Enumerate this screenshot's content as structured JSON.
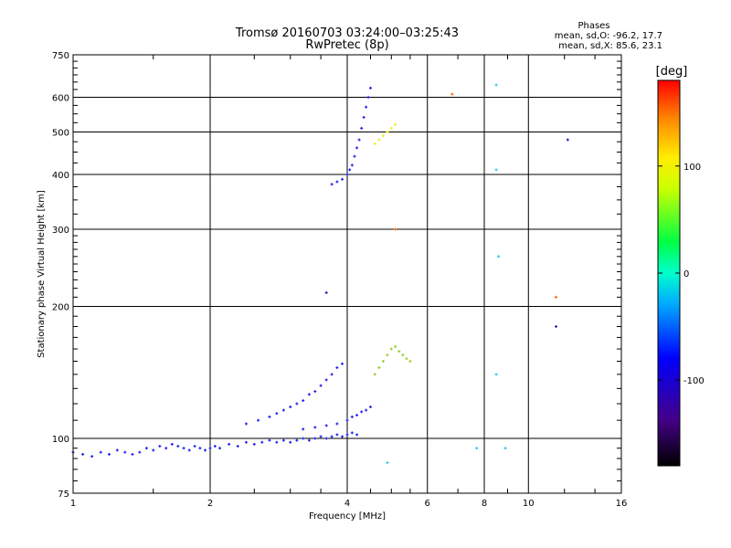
{
  "chart_data": {
    "type": "scatter",
    "title": "Tromsø 20160703 03:24:00–03:25:43",
    "subtitle": "RwPretec (8p)",
    "stats": {
      "heading": "Phases",
      "line1": "mean, sd,O: -96.2, 17.7",
      "line2": "mean, sd,X:  85.6, 23.1"
    },
    "xlabel": "Frequency [MHz]",
    "ylabel": "Stationary phase Virtual Height [km]",
    "x_scale": "log",
    "y_scale": "log",
    "xlim": [
      1,
      16
    ],
    "ylim": [
      75,
      750
    ],
    "x_ticks": [
      1,
      2,
      4,
      6,
      8,
      10,
      16
    ],
    "x_tick_labels": [
      "1",
      "2",
      "4",
      "6",
      "8",
      "10",
      "16"
    ],
    "y_ticks": [
      75,
      100,
      200,
      300,
      400,
      500,
      600,
      750
    ],
    "y_tick_labels": [
      "75",
      "100",
      "200",
      "300",
      "400",
      "500",
      "600",
      "750"
    ],
    "grid": true,
    "colorbar": {
      "label": "[deg]",
      "range": [
        -180,
        180
      ],
      "ticks": [
        100,
        0,
        -100
      ],
      "tick_labels": [
        "100",
        "0",
        "-100"
      ]
    },
    "series": [
      {
        "color": "#2222ee",
        "phase_deg": -100,
        "points": [
          [
            1.0,
            93
          ],
          [
            1.05,
            92
          ],
          [
            1.1,
            91
          ],
          [
            1.15,
            93
          ],
          [
            1.2,
            92
          ],
          [
            1.25,
            94
          ],
          [
            1.3,
            93
          ],
          [
            1.35,
            92
          ],
          [
            1.4,
            93
          ],
          [
            1.45,
            95
          ],
          [
            1.5,
            94
          ],
          [
            1.55,
            96
          ],
          [
            1.6,
            95
          ],
          [
            1.65,
            97
          ],
          [
            1.7,
            96
          ],
          [
            1.75,
            95
          ],
          [
            1.8,
            94
          ],
          [
            1.85,
            96
          ],
          [
            1.9,
            95
          ],
          [
            1.95,
            94
          ],
          [
            2.0,
            95
          ],
          [
            2.05,
            96
          ],
          [
            2.1,
            95
          ],
          [
            2.2,
            97
          ],
          [
            2.3,
            96
          ],
          [
            2.4,
            98
          ],
          [
            2.5,
            97
          ],
          [
            2.6,
            98
          ],
          [
            2.7,
            99
          ],
          [
            2.8,
            98
          ],
          [
            2.9,
            99
          ],
          [
            3.0,
            98
          ],
          [
            3.1,
            99
          ],
          [
            3.2,
            100
          ],
          [
            3.3,
            99
          ],
          [
            3.4,
            100
          ],
          [
            3.5,
            101
          ],
          [
            3.6,
            100
          ],
          [
            3.7,
            101
          ],
          [
            3.8,
            102
          ],
          [
            3.9,
            101
          ],
          [
            4.0,
            102
          ],
          [
            4.1,
            103
          ],
          [
            4.2,
            102
          ]
        ]
      },
      {
        "color": "#2222ee",
        "phase_deg": -110,
        "points": [
          [
            2.4,
            108
          ],
          [
            2.55,
            110
          ],
          [
            2.7,
            112
          ],
          [
            2.8,
            114
          ],
          [
            2.9,
            116
          ],
          [
            3.0,
            118
          ],
          [
            3.1,
            120
          ],
          [
            3.2,
            122
          ],
          [
            3.3,
            126
          ],
          [
            3.4,
            128
          ],
          [
            3.5,
            132
          ],
          [
            3.6,
            136
          ],
          [
            3.7,
            140
          ],
          [
            3.8,
            145
          ],
          [
            3.9,
            148
          ]
        ]
      },
      {
        "color": "#2222ee",
        "phase_deg": -105,
        "points": [
          [
            3.2,
            105
          ],
          [
            3.4,
            106
          ],
          [
            3.6,
            107
          ],
          [
            3.8,
            108
          ],
          [
            4.0,
            110
          ],
          [
            4.1,
            112
          ],
          [
            4.2,
            113
          ],
          [
            4.3,
            115
          ],
          [
            4.4,
            116
          ],
          [
            4.5,
            118
          ]
        ]
      },
      {
        "color": "#2222ee",
        "phase_deg": -100,
        "points": [
          [
            3.7,
            380
          ],
          [
            3.8,
            385
          ],
          [
            3.9,
            390
          ],
          [
            4.0,
            400
          ],
          [
            4.05,
            410
          ],
          [
            4.1,
            420
          ],
          [
            4.15,
            440
          ],
          [
            4.2,
            460
          ],
          [
            4.25,
            480
          ],
          [
            4.3,
            510
          ],
          [
            4.35,
            540
          ],
          [
            4.4,
            570
          ],
          [
            4.45,
            600
          ],
          [
            4.5,
            630
          ]
        ]
      },
      {
        "color": "#9acd32",
        "phase_deg": 80,
        "points": [
          [
            4.6,
            140
          ],
          [
            4.7,
            145
          ],
          [
            4.8,
            150
          ],
          [
            4.9,
            155
          ],
          [
            5.0,
            160
          ],
          [
            5.1,
            162
          ],
          [
            5.2,
            158
          ],
          [
            5.3,
            155
          ],
          [
            5.4,
            152
          ],
          [
            5.5,
            150
          ]
        ]
      },
      {
        "color": "#eeee22",
        "phase_deg": 100,
        "points": [
          [
            4.6,
            470
          ],
          [
            4.7,
            480
          ],
          [
            4.8,
            490
          ],
          [
            4.9,
            500
          ],
          [
            5.0,
            510
          ],
          [
            5.1,
            520
          ]
        ]
      },
      {
        "color": "#ff6600",
        "phase_deg": 150,
        "points": [
          [
            6.8,
            610
          ],
          [
            11.5,
            210
          ],
          [
            5.1,
            300
          ]
        ]
      },
      {
        "color": "#22ccee",
        "phase_deg": -40,
        "points": [
          [
            8.5,
            640
          ],
          [
            8.5,
            410
          ],
          [
            8.6,
            260
          ],
          [
            8.5,
            140
          ],
          [
            7.7,
            95
          ],
          [
            8.9,
            95
          ],
          [
            4.9,
            88
          ]
        ]
      },
      {
        "color": "#2222aa",
        "phase_deg": -120,
        "points": [
          [
            12.2,
            480
          ],
          [
            11.5,
            180
          ],
          [
            3.6,
            215
          ]
        ]
      }
    ]
  }
}
